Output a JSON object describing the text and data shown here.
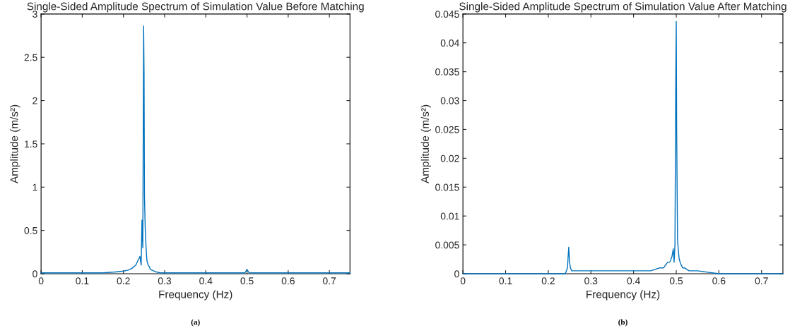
{
  "chart_data": [
    {
      "type": "line",
      "title": "Single-Sided Amplitude Spectrum of Simulation Value Before Matching",
      "xlabel": "Frequency (Hz)",
      "ylabel": "Amplitude (m/s²)",
      "annotations": [
        "(a)"
      ],
      "x": [
        0,
        0.05,
        0.1,
        0.15,
        0.18,
        0.2,
        0.21,
        0.22,
        0.23,
        0.235,
        0.24,
        0.243,
        0.245,
        0.247,
        0.249,
        0.25,
        0.251,
        0.253,
        0.255,
        0.257,
        0.26,
        0.263,
        0.265,
        0.27,
        0.28,
        0.29,
        0.3,
        0.35,
        0.4,
        0.45,
        0.495,
        0.5,
        0.505,
        0.55,
        0.6,
        0.65,
        0.7,
        0.75
      ],
      "series": [
        {
          "color": "#0072bd",
          "values": [
            0.01,
            0.01,
            0.01,
            0.01,
            0.02,
            0.03,
            0.04,
            0.06,
            0.1,
            0.15,
            0.2,
            0.1,
            0.62,
            0.3,
            2.86,
            2.33,
            0.9,
            0.5,
            0.3,
            0.15,
            0.1,
            0.08,
            0.05,
            0.04,
            0.02,
            0.01,
            0.01,
            0.01,
            0.01,
            0.01,
            0.01,
            0.05,
            0.01,
            0.01,
            0.01,
            0.01,
            0.01,
            0.01
          ]
        }
      ],
      "xlim": [
        0,
        0.75
      ],
      "xticks": [
        0,
        0.1,
        0.2,
        0.3,
        0.4,
        0.5,
        0.6,
        0.7
      ],
      "ylim": [
        0,
        3
      ],
      "yticks": [
        0,
        0.5,
        1,
        1.5,
        2,
        2.5,
        3
      ],
      "grid": false,
      "legend": false
    },
    {
      "type": "line",
      "title": "Single-Sided Amplitude Spectrum of Simulation Value After Matching",
      "xlabel": "Frequency (Hz)",
      "ylabel": "Amplitude (m/s²)",
      "annotations": [
        "(b)"
      ],
      "x": [
        0,
        0.1,
        0.2,
        0.24,
        0.245,
        0.248,
        0.25,
        0.252,
        0.255,
        0.26,
        0.3,
        0.35,
        0.4,
        0.42,
        0.44,
        0.46,
        0.47,
        0.48,
        0.485,
        0.49,
        0.493,
        0.495,
        0.497,
        0.499,
        0.5,
        0.501,
        0.503,
        0.505,
        0.507,
        0.51,
        0.515,
        0.52,
        0.53,
        0.55,
        0.6,
        0.65,
        0.7,
        0.75
      ],
      "series": [
        {
          "color": "#0072bd",
          "values": [
            0,
            0,
            0,
            0,
            0.001,
            0.0046,
            0.002,
            0.001,
            0.0005,
            0.0005,
            0.0005,
            0.0005,
            0.0005,
            0.0005,
            0.0005,
            0.001,
            0.001,
            0.002,
            0.002,
            0.003,
            0.0043,
            0.002,
            0.005,
            0.034,
            0.0437,
            0.025,
            0.006,
            0.004,
            0.0025,
            0.0018,
            0.001,
            0.001,
            0.0005,
            0.0005,
            0,
            0,
            0,
            0
          ]
        }
      ],
      "xlim": [
        0,
        0.75
      ],
      "xticks": [
        0,
        0.1,
        0.2,
        0.3,
        0.4,
        0.5,
        0.6,
        0.7
      ],
      "ylim": [
        0,
        0.045
      ],
      "yticks": [
        0,
        0.005,
        0.01,
        0.015,
        0.02,
        0.025,
        0.03,
        0.035,
        0.04,
        0.045
      ],
      "grid": false,
      "legend": false
    }
  ]
}
